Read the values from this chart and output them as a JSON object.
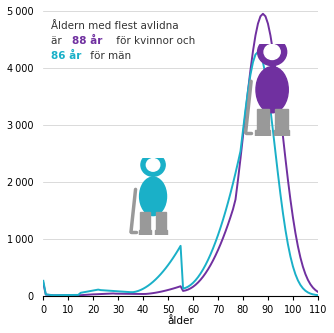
{
  "title": "",
  "xlabel": "ålder",
  "ylabel": "",
  "xlim": [
    0,
    110
  ],
  "ylim": [
    0,
    5000
  ],
  "yticks": [
    0,
    1000,
    2000,
    3000,
    4000,
    5000
  ],
  "xticks": [
    0,
    10,
    20,
    30,
    40,
    50,
    60,
    70,
    80,
    90,
    100,
    110
  ],
  "color_women": "#7030a0",
  "color_men": "#1ab0c8",
  "annotation_line1": "Åldern med flest avlidna",
  "annotation_line2a": "är ",
  "annotation_line2b": "88 år",
  "annotation_line2c": " för kvinnor och",
  "annotation_line3a": "86 år",
  "annotation_line3b": " för män",
  "background_color": "#ffffff",
  "text_color": "#333333",
  "grid_color": "#cccccc"
}
